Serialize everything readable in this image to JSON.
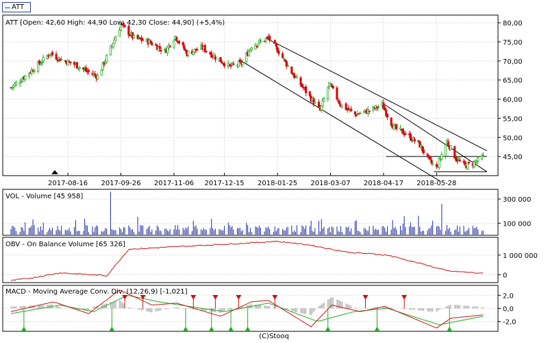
{
  "legend": {
    "label": "ATT"
  },
  "footer": "(C)Stooq",
  "colors": {
    "up": "#22aa22",
    "down": "#cc1111",
    "volume": "#1a2aa0",
    "obv": "#cc1111",
    "macd": "#cc1111",
    "signal": "#22aa22",
    "hist": "#999999",
    "grid": "#c8c8c8"
  },
  "chart_data": [
    {
      "type": "candlestick",
      "title": "ATT [Open: 42,60  High: 44,90  Low: 42,30  Close: 44,90] (+5,4%)",
      "xlabel": "",
      "ylabel": "",
      "ylim": [
        40,
        82
      ],
      "y_tick_labels": [
        "80,00",
        "75,00",
        "70,00",
        "65,00",
        "60,00",
        "55,00",
        "50,00",
        "45,00"
      ],
      "y_ticks": [
        80,
        75,
        70,
        65,
        60,
        55,
        50,
        45
      ],
      "x_tick_labels": [
        "2017-08-16",
        "2017-09-26",
        "2017-11-06",
        "2017-12-15",
        "2018-01-25",
        "2018-03-07",
        "2018-04-17",
        "2018-05-28"
      ],
      "grid": true,
      "close_path": [
        {
          "x": "2017-07-03",
          "y": 63.0
        },
        {
          "x": "2017-07-12",
          "y": 65.5
        },
        {
          "x": "2017-07-24",
          "y": 69.0
        },
        {
          "x": "2017-08-02",
          "y": 72.0
        },
        {
          "x": "2017-08-10",
          "y": 70.5
        },
        {
          "x": "2017-08-22",
          "y": 69.0
        },
        {
          "x": "2017-09-01",
          "y": 67.0
        },
        {
          "x": "2017-09-08",
          "y": 66.0
        },
        {
          "x": "2017-09-15",
          "y": 71.0
        },
        {
          "x": "2017-09-26",
          "y": 79.5
        },
        {
          "x": "2017-10-06",
          "y": 76.0
        },
        {
          "x": "2017-10-18",
          "y": 75.0
        },
        {
          "x": "2017-10-30",
          "y": 72.5
        },
        {
          "x": "2017-11-07",
          "y": 76.5
        },
        {
          "x": "2017-11-16",
          "y": 72.0
        },
        {
          "x": "2017-11-28",
          "y": 73.5
        },
        {
          "x": "2017-12-08",
          "y": 71.0
        },
        {
          "x": "2017-12-19",
          "y": 68.5
        },
        {
          "x": "2017-12-29",
          "y": 69.5
        },
        {
          "x": "2018-01-05",
          "y": 74.0
        },
        {
          "x": "2018-01-12",
          "y": 75.0
        },
        {
          "x": "2018-01-18",
          "y": 76.0
        },
        {
          "x": "2018-01-26",
          "y": 72.5
        },
        {
          "x": "2018-02-06",
          "y": 66.5
        },
        {
          "x": "2018-02-16",
          "y": 62.0
        },
        {
          "x": "2018-02-27",
          "y": 57.0
        },
        {
          "x": "2018-03-06",
          "y": 64.0
        },
        {
          "x": "2018-03-15",
          "y": 58.5
        },
        {
          "x": "2018-03-26",
          "y": 56.0
        },
        {
          "x": "2018-04-06",
          "y": 57.0
        },
        {
          "x": "2018-04-16",
          "y": 58.5
        },
        {
          "x": "2018-04-25",
          "y": 52.5
        },
        {
          "x": "2018-05-04",
          "y": 51.0
        },
        {
          "x": "2018-05-15",
          "y": 48.0
        },
        {
          "x": "2018-05-22",
          "y": 44.0
        },
        {
          "x": "2018-05-28",
          "y": 42.0
        },
        {
          "x": "2018-06-05",
          "y": 49.0
        },
        {
          "x": "2018-06-12",
          "y": 44.5
        },
        {
          "x": "2018-06-19",
          "y": 42.5
        },
        {
          "x": "2018-06-27",
          "y": 43.5
        },
        {
          "x": "2018-07-03",
          "y": 44.9
        }
      ],
      "trendlines": [
        {
          "x1": "2018-01-16",
          "y1": 76.0,
          "x2": "2018-07-06",
          "y2": 46.5
        },
        {
          "x1": "2017-12-28",
          "y1": 70.0,
          "x2": "2018-05-31",
          "y2": 38.5
        },
        {
          "x1": "2018-04-16",
          "y1": 59.0,
          "x2": "2018-07-06",
          "y2": 41.0
        },
        {
          "x1": "2018-04-19",
          "y1": 45.0,
          "x2": "2018-07-06",
          "y2": 45.0
        },
        {
          "x1": "2018-05-26",
          "y1": 41.0,
          "x2": "2018-07-06",
          "y2": 41.0
        }
      ]
    },
    {
      "type": "bar",
      "title": "VOL - Volume [45 958]",
      "ylim": [
        0,
        380000
      ],
      "y_tick_labels": [
        "300 000",
        "100 000"
      ],
      "y_ticks": [
        300000,
        100000
      ],
      "peaks": [
        {
          "x": "2017-09-18",
          "y": 360000
        },
        {
          "x": "2018-06-01",
          "y": 260000
        }
      ]
    },
    {
      "type": "line",
      "title": "OBV - On Balance Volume [65 326]",
      "ylim": [
        -400000,
        1900000
      ],
      "y_tick_labels": [
        "1 000 000",
        "0"
      ],
      "y_ticks": [
        1000000,
        0
      ],
      "points": [
        {
          "x": "2017-07-03",
          "y": -300000
        },
        {
          "x": "2017-07-20",
          "y": -150000
        },
        {
          "x": "2017-08-10",
          "y": 100000
        },
        {
          "x": "2017-09-15",
          "y": -50000
        },
        {
          "x": "2017-10-02",
          "y": 1300000
        },
        {
          "x": "2017-11-01",
          "y": 1400000
        },
        {
          "x": "2017-12-15",
          "y": 1550000
        },
        {
          "x": "2018-01-25",
          "y": 1700000
        },
        {
          "x": "2018-02-20",
          "y": 1500000
        },
        {
          "x": "2018-03-20",
          "y": 1150000
        },
        {
          "x": "2018-04-20",
          "y": 1000000
        },
        {
          "x": "2018-05-20",
          "y": 500000
        },
        {
          "x": "2018-06-05",
          "y": 200000
        },
        {
          "x": "2018-07-03",
          "y": 65326
        }
      ]
    },
    {
      "type": "line",
      "title": "MACD - Moving Average Conv. Div. (12,26,9) [-1,021]",
      "ylim": [
        -3.5,
        3.5
      ],
      "y_tick_labels": [
        "2,0",
        "0,0",
        "-2,0"
      ],
      "y_ticks": [
        2,
        0,
        -2
      ],
      "series": [
        {
          "points": [
            {
              "x": "2017-07-03",
              "y": -0.5
            },
            {
              "x": "2017-08-05",
              "y": 1.0
            },
            {
              "x": "2017-09-01",
              "y": -0.8
            },
            {
              "x": "2017-09-25",
              "y": 2.8
            },
            {
              "x": "2017-10-20",
              "y": 0.5
            },
            {
              "x": "2017-11-08",
              "y": 0.8
            },
            {
              "x": "2017-12-12",
              "y": -1.2
            },
            {
              "x": "2018-01-05",
              "y": 1.0
            },
            {
              "x": "2018-01-18",
              "y": 1.2
            },
            {
              "x": "2018-02-20",
              "y": -2.8
            },
            {
              "x": "2018-03-08",
              "y": 0.5
            },
            {
              "x": "2018-03-30",
              "y": -0.5
            },
            {
              "x": "2018-04-18",
              "y": 0.3
            },
            {
              "x": "2018-05-10",
              "y": -1.5
            },
            {
              "x": "2018-05-28",
              "y": -3.0
            },
            {
              "x": "2018-06-08",
              "y": -1.5
            },
            {
              "x": "2018-07-03",
              "y": -1.0
            }
          ]
        },
        {
          "points": [
            {
              "x": "2017-07-03",
              "y": -0.8
            },
            {
              "x": "2017-08-10",
              "y": 0.5
            },
            {
              "x": "2017-09-05",
              "y": -0.5
            },
            {
              "x": "2017-10-01",
              "y": 2.0
            },
            {
              "x": "2017-10-25",
              "y": 1.0
            },
            {
              "x": "2017-12-15",
              "y": -0.5
            },
            {
              "x": "2018-01-18",
              "y": 0.8
            },
            {
              "x": "2018-02-25",
              "y": -2.0
            },
            {
              "x": "2018-03-25",
              "y": -0.5
            },
            {
              "x": "2018-04-20",
              "y": 0.0
            },
            {
              "x": "2018-05-30",
              "y": -2.5
            },
            {
              "x": "2018-07-03",
              "y": -1.2
            }
          ]
        }
      ],
      "signals": [
        {
          "x": "2017-07-13",
          "kind": "up"
        },
        {
          "x": "2017-09-19",
          "kind": "up"
        },
        {
          "x": "2017-09-29",
          "kind": "down"
        },
        {
          "x": "2017-10-13",
          "kind": "down"
        },
        {
          "x": "2017-11-15",
          "kind": "up"
        },
        {
          "x": "2017-11-21",
          "kind": "down"
        },
        {
          "x": "2017-12-05",
          "kind": "up"
        },
        {
          "x": "2017-12-08",
          "kind": "down"
        },
        {
          "x": "2017-12-20",
          "kind": "up"
        },
        {
          "x": "2017-12-26",
          "kind": "down"
        },
        {
          "x": "2018-01-02",
          "kind": "up"
        },
        {
          "x": "2018-01-23",
          "kind": "down"
        },
        {
          "x": "2018-03-05",
          "kind": "up"
        },
        {
          "x": "2018-04-03",
          "kind": "down"
        },
        {
          "x": "2018-04-12",
          "kind": "up"
        },
        {
          "x": "2018-05-03",
          "kind": "down"
        },
        {
          "x": "2018-06-07",
          "kind": "up"
        }
      ]
    }
  ]
}
